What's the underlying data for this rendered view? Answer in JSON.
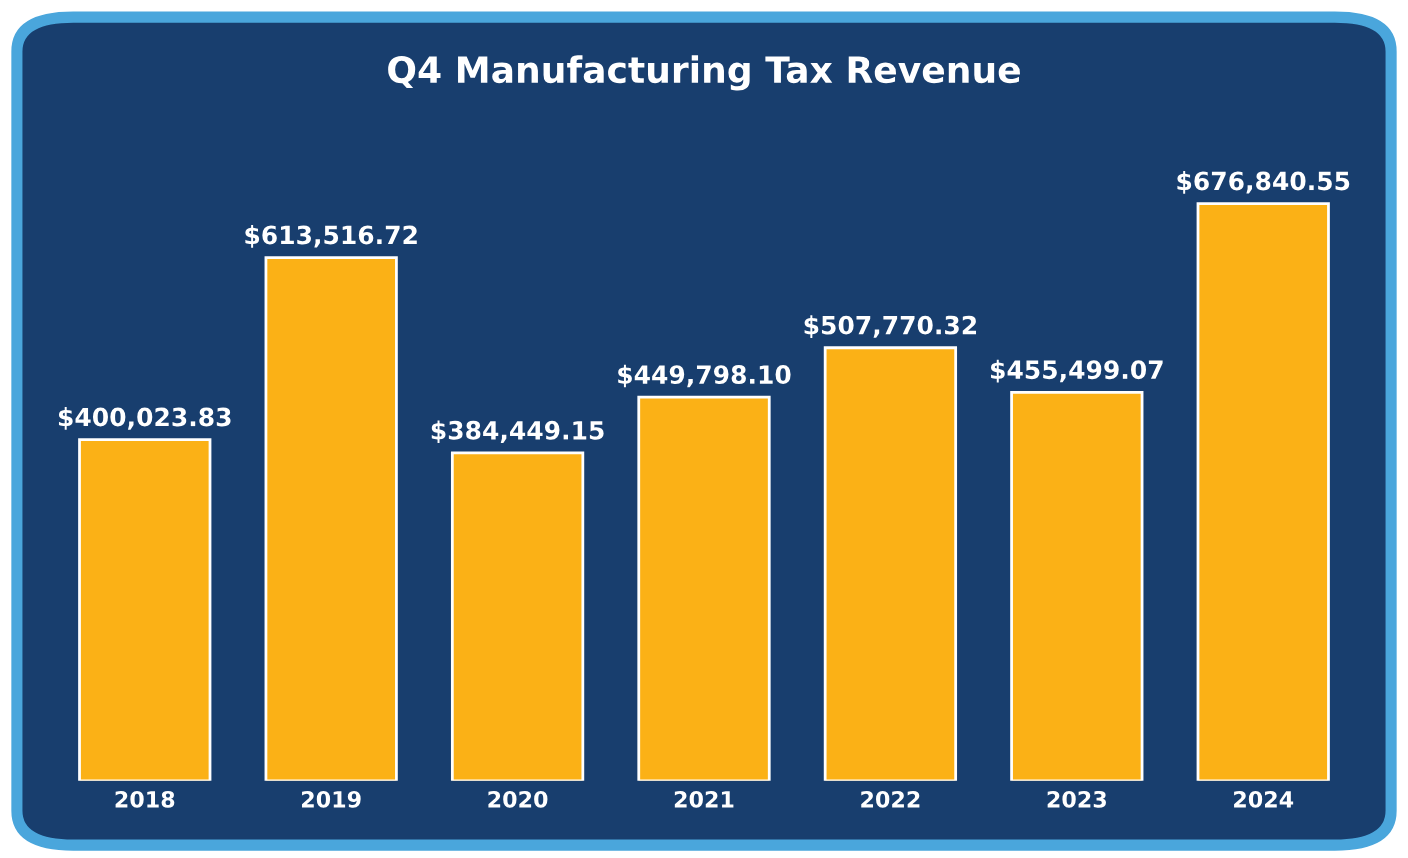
{
  "chart_data": {
    "type": "bar",
    "title": "Q4 Manufacturing Tax Revenue",
    "categories": [
      "2018",
      "2019",
      "2020",
      "2021",
      "2022",
      "2023",
      "2024"
    ],
    "values": [
      400023.83,
      613516.72,
      384449.15,
      449798.1,
      507770.32,
      455499.07,
      676840.55
    ],
    "value_labels": [
      "$400,023.83",
      "$613,516.72",
      "$384,449.15",
      "$449,798.10",
      "$507,770.32",
      "$455,499.07",
      "$676,840.55"
    ],
    "color": "#fbb116"
  }
}
